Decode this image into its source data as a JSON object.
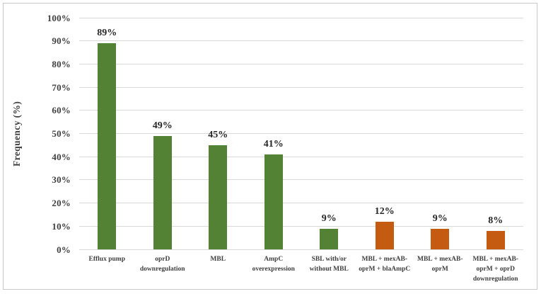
{
  "chart_data": {
    "type": "bar",
    "title": "",
    "xlabel": "",
    "ylabel": "Frequency (%)",
    "ylim": [
      0,
      100
    ],
    "ytick_step": 10,
    "ytick_labels": [
      "0%",
      "10%",
      "20%",
      "30%",
      "40%",
      "50%",
      "60%",
      "70%",
      "80%",
      "90%",
      "100%"
    ],
    "grid": true,
    "legend": false,
    "categories": [
      "Efflux pump",
      "oprD downregulation",
      "MBL",
      "AmpC overexpression",
      "SBL with/or without MBL",
      "MBL + mexAB-oprM + blaAmpC",
      "MBL + mexAB-oprM",
      "MBL + mexAB-oprM + oprD downregulation"
    ],
    "values": [
      89,
      49,
      45,
      41,
      9,
      12,
      9,
      8
    ],
    "data_labels": [
      "89%",
      "49%",
      "45%",
      "41%",
      "9%",
      "12%",
      "9%",
      "8%"
    ],
    "bar_colors": [
      "#548235",
      "#548235",
      "#548235",
      "#548235",
      "#548235",
      "#C55A11",
      "#C55A11",
      "#C55A11"
    ],
    "colors": {
      "green": "#548235",
      "orange": "#C55A11",
      "gridline": "#D9D9D9",
      "tick_text": "#3F3F3F",
      "value_text": "#262626",
      "frame_border": "#C9C9C9",
      "background": "#FFFFFF"
    }
  }
}
